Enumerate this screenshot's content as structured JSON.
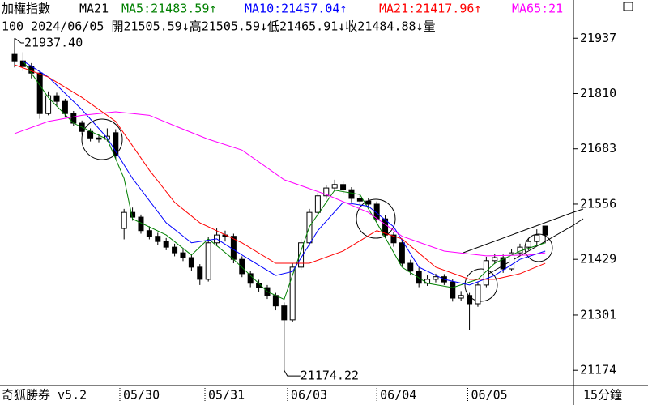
{
  "header": {
    "name": "加權指數",
    "indicator": "MA21",
    "ma": [
      {
        "text": "MA5:21483.59↑",
        "color": "#008000"
      },
      {
        "text": "MA10:21457.04↑",
        "color": "#0000ff"
      },
      {
        "text": "MA21:21417.96↑",
        "color": "#ff0000"
      },
      {
        "text": "MA65:21",
        "color": "#ff00ff"
      }
    ],
    "info": "100 2024/06/05 開21505.59↓高21505.59↓低21465.91↓收21484.88↓量"
  },
  "chart_data": {
    "type": "candlestick",
    "open": [
      21900,
      21885,
      21872,
      21857,
      21764,
      21805,
      21792,
      21764,
      21742,
      21723,
      21708,
      21705,
      21720,
      21500,
      21537,
      21526,
      21495,
      21482,
      21470,
      21457,
      21444,
      21433,
      21411,
      21383,
      21467,
      21485,
      21482,
      21429,
      21396,
      21374,
      21364,
      21346,
      21322,
      21290,
      21411,
      21467,
      21537,
      21575,
      21593,
      21601,
      21589,
      21569,
      21563,
      21556,
      21522,
      21485,
      21467,
      21420,
      21402,
      21374,
      21383,
      21389,
      21377,
      21340,
      21346,
      21327,
      21370,
      21426,
      21433,
      21407,
      21444,
      21457,
      21470,
      21505.59
    ],
    "high": [
      21937.4,
      21905,
      21880,
      21862,
      21815,
      21812,
      21798,
      21770,
      21748,
      21730,
      21716,
      21730,
      21728,
      21545,
      21548,
      21532,
      21505,
      21490,
      21478,
      21465,
      21452,
      21440,
      21418,
      21480,
      21500,
      21495,
      21488,
      21436,
      21402,
      21382,
      21370,
      21352,
      21330,
      21420,
      21475,
      21545,
      21582,
      21600,
      21612,
      21608,
      21595,
      21576,
      21570,
      21562,
      21530,
      21492,
      21474,
      21428,
      21410,
      21392,
      21396,
      21395,
      21384,
      21356,
      21352,
      21378,
      21435,
      21442,
      21440,
      21452,
      21465,
      21478,
      21498,
      21505.59
    ],
    "low": [
      21870,
      21862,
      21845,
      21752,
      21760,
      21780,
      21755,
      21735,
      21715,
      21700,
      21698,
      21700,
      21660,
      21475,
      21518,
      21488,
      21475,
      21462,
      21450,
      21436,
      21425,
      21402,
      21370,
      21378,
      21460,
      21470,
      21420,
      21388,
      21365,
      21355,
      21338,
      21312,
      21174.22,
      21285,
      21405,
      21460,
      21530,
      21568,
      21585,
      21580,
      21560,
      21555,
      21548,
      21515,
      21478,
      21458,
      21412,
      21392,
      21365,
      21368,
      21376,
      21370,
      21332,
      21334,
      21266,
      21320,
      21365,
      21418,
      21398,
      21402,
      21438,
      21450,
      21462,
      21465.91
    ],
    "close": [
      21885,
      21872,
      21857,
      21764,
      21805,
      21792,
      21764,
      21742,
      21723,
      21708,
      21705,
      21712,
      21667,
      21537,
      21526,
      21495,
      21482,
      21470,
      21457,
      21444,
      21433,
      21411,
      21383,
      21467,
      21485,
      21482,
      21429,
      21396,
      21374,
      21364,
      21346,
      21322,
      21290,
      21411,
      21467,
      21537,
      21575,
      21593,
      21601,
      21589,
      21569,
      21563,
      21556,
      21522,
      21485,
      21467,
      21420,
      21402,
      21374,
      21383,
      21389,
      21377,
      21340,
      21346,
      21327,
      21370,
      21426,
      21433,
      21407,
      21444,
      21457,
      21470,
      21485,
      21484.88
    ],
    "series": [
      {
        "color": "#008000",
        "x": [
          1,
          4,
          7,
          11,
          13,
          14,
          18,
          21,
          23,
          26,
          30,
          32,
          35,
          38,
          41,
          43,
          46,
          49,
          52,
          55,
          57,
          60,
          63
        ],
        "values": [
          21885,
          21801,
          21742,
          21705,
          21615,
          21522,
          21485,
          21439,
          21476,
          21429,
          21355,
          21337,
          21504,
          21588,
          21578,
          21513,
          21411,
          21374,
          21364,
          21383,
          21420,
          21448,
          21467
        ]
      },
      {
        "color": "#0000ff",
        "x": [
          1,
          4,
          8,
          11,
          14,
          18,
          21,
          24,
          27,
          31,
          33,
          36,
          39,
          42,
          45,
          48,
          51,
          54,
          57,
          60,
          63
        ],
        "values": [
          21885,
          21848,
          21773,
          21708,
          21615,
          21513,
          21467,
          21476,
          21439,
          21392,
          21401,
          21495,
          21560,
          21551,
          21504,
          21411,
          21383,
          21370,
          21392,
          21429,
          21448
        ]
      },
      {
        "color": "#ff0000",
        "x": [
          0,
          4,
          8,
          12,
          16,
          19,
          22,
          27,
          31,
          35,
          39,
          43,
          46,
          50,
          54,
          57,
          60,
          63
        ],
        "values": [
          21876,
          21848,
          21801,
          21746,
          21634,
          21560,
          21513,
          21467,
          21420,
          21420,
          21448,
          21495,
          21476,
          21411,
          21383,
          21383,
          21396,
          21420
        ]
      },
      {
        "color": "#ff00ff",
        "x": [
          0,
          4,
          8,
          12,
          16,
          19,
          23,
          27,
          32,
          37,
          42,
          46,
          51,
          56,
          61,
          63
        ],
        "values": [
          21718,
          21746,
          21760,
          21768,
          21760,
          21736,
          21705,
          21680,
          21612,
          21578,
          21537,
          21482,
          21448,
          21437,
          21439,
          21444
        ]
      }
    ],
    "annotations": [
      "21937.40",
      "21174.22"
    ],
    "xlim": [
      -1.73,
      66.35
    ],
    "xticks": [
      {
        "value": 12.5,
        "label": "05/30"
      },
      {
        "value": 22.6,
        "label": "05/31"
      },
      {
        "value": 32.4,
        "label": "06/03"
      },
      {
        "value": 43,
        "label": "06/04"
      },
      {
        "value": 53.8,
        "label": "06/05"
      }
    ],
    "ylim": [
      21139,
      21984
    ],
    "yticks": [
      21937,
      21810,
      21683,
      21556,
      21429,
      21301,
      21174
    ]
  },
  "footer": {
    "app": "奇狐勝券 v5.2",
    "period": "15分鐘"
  }
}
